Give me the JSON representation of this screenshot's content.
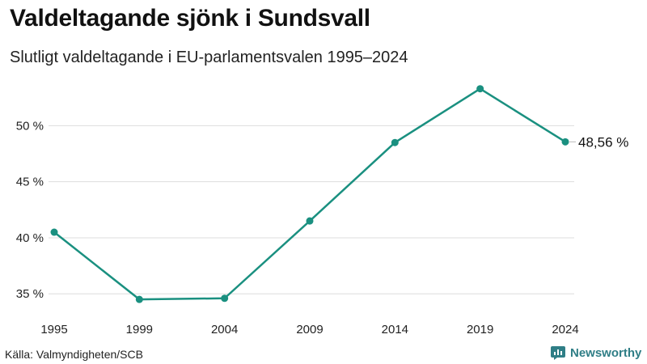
{
  "header": {
    "title": "Valdeltagande sjönk i Sundsvall",
    "subtitle": "Slutligt valdeltagande i EU-parlamentsvalen 1995–2024"
  },
  "footer": {
    "source": "Källa: Valmyndigheten/SCB",
    "brand": "Newsworthy"
  },
  "colors": {
    "line": "#1a9080",
    "grid": "#dddddd",
    "brand": "#2f7e86"
  },
  "chart_data": {
    "type": "line",
    "title": "Valdeltagande sjönk i Sundsvall",
    "subtitle": "Slutligt valdeltagande i EU-parlamentsvalen 1995–2024",
    "xlabel": "",
    "ylabel": "",
    "x": [
      "1995",
      "1999",
      "2004",
      "2009",
      "2014",
      "2019",
      "2024"
    ],
    "series": [
      {
        "name": "Valdeltagande",
        "values": [
          40.5,
          34.5,
          34.6,
          41.5,
          48.5,
          53.3,
          48.56
        ]
      }
    ],
    "ylim": [
      33.5,
      54
    ],
    "yticks": [
      35,
      40,
      45,
      50
    ],
    "ytick_labels": [
      "35 %",
      "40 %",
      "45 %",
      "50 %"
    ],
    "end_label": "48,56 %",
    "grid": true,
    "legend": "none"
  }
}
